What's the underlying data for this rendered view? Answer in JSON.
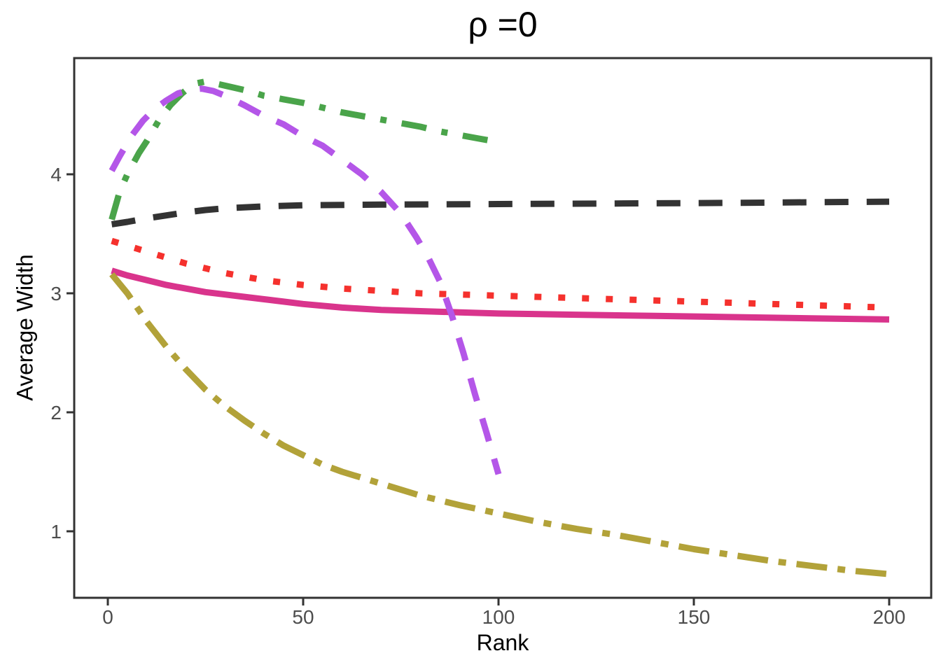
{
  "chart_data": {
    "type": "line",
    "title": "ρ =0",
    "xlabel": "Rank",
    "ylabel": "Average Width",
    "x_axis": {
      "ticks": [
        0,
        50,
        100,
        150,
        200
      ],
      "range": [
        -8.6,
        210.7
      ],
      "grid": false
    },
    "y_axis": {
      "ticks": [
        1,
        2,
        3,
        4
      ],
      "range": [
        0.44,
        4.98
      ],
      "grid": false
    },
    "legend": "none",
    "background": "#ffffff",
    "axis_color": "#333333",
    "tick_label_color": "#4d4d4d",
    "series": [
      {
        "name": "black-dashed",
        "color": "#333333",
        "linetype": "dashed",
        "points": [
          [
            1,
            3.58
          ],
          [
            5,
            3.6
          ],
          [
            10,
            3.63
          ],
          [
            15,
            3.655
          ],
          [
            20,
            3.68
          ],
          [
            25,
            3.7
          ],
          [
            30,
            3.715
          ],
          [
            40,
            3.73
          ],
          [
            50,
            3.74
          ],
          [
            70,
            3.745
          ],
          [
            100,
            3.75
          ],
          [
            130,
            3.755
          ],
          [
            160,
            3.76
          ],
          [
            200,
            3.77
          ]
        ]
      },
      {
        "name": "red-dotted",
        "color": "#F5312D",
        "linetype": "dotted",
        "points": [
          [
            1,
            3.44
          ],
          [
            5,
            3.4
          ],
          [
            10,
            3.35
          ],
          [
            15,
            3.3
          ],
          [
            20,
            3.25
          ],
          [
            25,
            3.21
          ],
          [
            30,
            3.17
          ],
          [
            35,
            3.14
          ],
          [
            40,
            3.11
          ],
          [
            45,
            3.09
          ],
          [
            50,
            3.07
          ],
          [
            60,
            3.04
          ],
          [
            70,
            3.02
          ],
          [
            80,
            3.0
          ],
          [
            90,
            2.99
          ],
          [
            100,
            2.98
          ],
          [
            120,
            2.96
          ],
          [
            140,
            2.94
          ],
          [
            160,
            2.92
          ],
          [
            180,
            2.9
          ],
          [
            200,
            2.88
          ]
        ]
      },
      {
        "name": "magenta-solid",
        "color": "#D9348C",
        "linetype": "solid",
        "points": [
          [
            1,
            3.19
          ],
          [
            5,
            3.15
          ],
          [
            10,
            3.11
          ],
          [
            15,
            3.07
          ],
          [
            20,
            3.04
          ],
          [
            25,
            3.01
          ],
          [
            30,
            2.99
          ],
          [
            35,
            2.97
          ],
          [
            40,
            2.95
          ],
          [
            45,
            2.93
          ],
          [
            50,
            2.91
          ],
          [
            60,
            2.88
          ],
          [
            70,
            2.86
          ],
          [
            80,
            2.85
          ],
          [
            90,
            2.84
          ],
          [
            100,
            2.83
          ],
          [
            120,
            2.82
          ],
          [
            140,
            2.81
          ],
          [
            160,
            2.8
          ],
          [
            180,
            2.79
          ],
          [
            200,
            2.78
          ]
        ]
      },
      {
        "name": "olive-dotdash",
        "color": "#B2A239",
        "linetype": "dotdash",
        "points": [
          [
            1,
            3.16
          ],
          [
            5,
            3.0
          ],
          [
            10,
            2.76
          ],
          [
            15,
            2.55
          ],
          [
            20,
            2.36
          ],
          [
            25,
            2.19
          ],
          [
            30,
            2.05
          ],
          [
            35,
            1.93
          ],
          [
            40,
            1.82
          ],
          [
            45,
            1.72
          ],
          [
            50,
            1.64
          ],
          [
            55,
            1.56
          ],
          [
            60,
            1.5
          ],
          [
            70,
            1.4
          ],
          [
            80,
            1.3
          ],
          [
            90,
            1.22
          ],
          [
            100,
            1.15
          ],
          [
            110,
            1.08
          ],
          [
            120,
            1.02
          ],
          [
            130,
            0.97
          ],
          [
            140,
            0.91
          ],
          [
            150,
            0.85
          ],
          [
            160,
            0.8
          ],
          [
            170,
            0.75
          ],
          [
            180,
            0.71
          ],
          [
            190,
            0.67
          ],
          [
            200,
            0.64
          ]
        ]
      },
      {
        "name": "green-twodash",
        "color": "#4AA44A",
        "linetype": "twodash",
        "points": [
          [
            1,
            3.62
          ],
          [
            3,
            3.85
          ],
          [
            5,
            4.0
          ],
          [
            8,
            4.18
          ],
          [
            10,
            4.28
          ],
          [
            13,
            4.45
          ],
          [
            16,
            4.58
          ],
          [
            19,
            4.68
          ],
          [
            22,
            4.76
          ],
          [
            25,
            4.78
          ],
          [
            28,
            4.76
          ],
          [
            32,
            4.73
          ],
          [
            36,
            4.7
          ],
          [
            40,
            4.66
          ],
          [
            45,
            4.63
          ],
          [
            50,
            4.6
          ],
          [
            55,
            4.56
          ],
          [
            60,
            4.52
          ],
          [
            65,
            4.49
          ],
          [
            70,
            4.46
          ],
          [
            75,
            4.43
          ],
          [
            80,
            4.4
          ],
          [
            85,
            4.36
          ],
          [
            90,
            4.33
          ],
          [
            95,
            4.3
          ],
          [
            100,
            4.27
          ]
        ]
      },
      {
        "name": "purple-dashed",
        "color": "#B456E8",
        "linetype": "dashed",
        "points": [
          [
            1,
            4.03
          ],
          [
            3,
            4.15
          ],
          [
            6,
            4.32
          ],
          [
            9,
            4.45
          ],
          [
            12,
            4.55
          ],
          [
            15,
            4.62
          ],
          [
            18,
            4.68
          ],
          [
            21,
            4.71
          ],
          [
            24,
            4.72
          ],
          [
            27,
            4.7
          ],
          [
            30,
            4.66
          ],
          [
            35,
            4.58
          ],
          [
            40,
            4.49
          ],
          [
            45,
            4.42
          ],
          [
            50,
            4.32
          ],
          [
            55,
            4.24
          ],
          [
            60,
            4.12
          ],
          [
            65,
            4.0
          ],
          [
            70,
            3.85
          ],
          [
            75,
            3.67
          ],
          [
            79,
            3.47
          ],
          [
            82,
            3.3
          ],
          [
            85,
            3.1
          ],
          [
            88,
            2.82
          ],
          [
            91,
            2.5
          ],
          [
            94,
            2.15
          ],
          [
            97,
            1.82
          ],
          [
            100,
            1.48
          ]
        ]
      }
    ]
  }
}
